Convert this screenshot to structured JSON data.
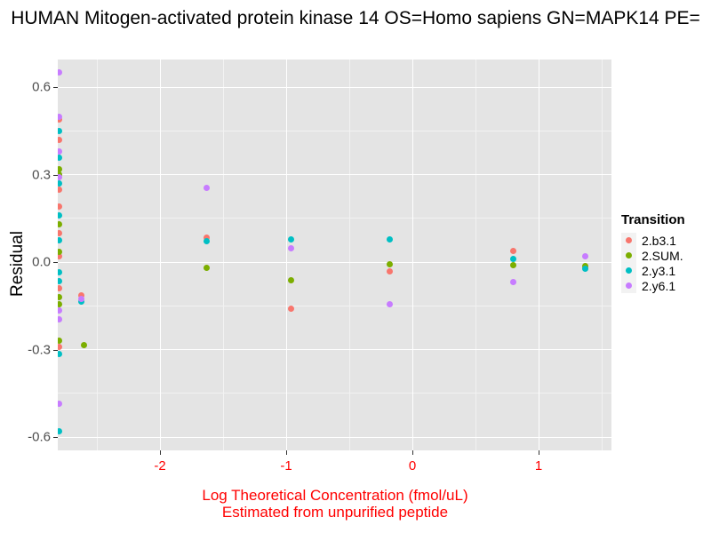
{
  "chart_data": {
    "type": "scatter",
    "title": "HUMAN Mitogen-activated protein kinase 14 OS=Homo sapiens GN=MAPK14 PE=",
    "ylabel": "Residual",
    "xlabel": [
      "Log Theoretical Concentration (fmol/uL)",
      "Estimated from unpurified peptide"
    ],
    "legend_title": "Transition",
    "legend_position": "right",
    "grid": true,
    "xlim": [
      -2.81,
      1.577
    ],
    "ylim": [
      -0.645,
      0.695
    ],
    "x_ticks": {
      "values": [
        -2,
        -1,
        0,
        1
      ],
      "labels": [
        "-2",
        "-1",
        "0",
        "1"
      ]
    },
    "y_ticks": {
      "values": [
        0.6,
        0.3,
        0.0,
        -0.3,
        -0.6
      ],
      "labels": [
        "0.6",
        "0.3",
        "0.0",
        "-0.3",
        "-0.6"
      ]
    },
    "x_minor": [
      -2.5,
      -1.5,
      -0.5,
      0.5,
      1.5
    ],
    "y_minor": [
      0.45,
      0.15,
      -0.15,
      -0.45
    ],
    "series": [
      {
        "name": "2.b3.1",
        "color": "#F8766D",
        "points": [
          [
            -2.8,
            0.49
          ],
          [
            -2.8,
            0.42
          ],
          [
            -2.8,
            0.25
          ],
          [
            -2.8,
            0.19
          ],
          [
            -2.8,
            0.1
          ],
          [
            -2.8,
            0.02
          ],
          [
            -2.8,
            -0.09
          ],
          [
            -2.8,
            -0.29
          ],
          [
            -2.62,
            -0.115
          ],
          [
            -1.63,
            0.084
          ],
          [
            -0.96,
            -0.158
          ],
          [
            -0.18,
            -0.032
          ],
          [
            0.8,
            0.038
          ],
          [
            1.37,
            -0.018
          ]
        ]
      },
      {
        "name": "2.SUM.",
        "color": "#7CAE00",
        "points": [
          [
            -2.8,
            0.32
          ],
          [
            -2.8,
            0.3
          ],
          [
            -2.8,
            0.13
          ],
          [
            -2.8,
            0.035
          ],
          [
            -2.8,
            -0.12
          ],
          [
            -2.8,
            -0.145
          ],
          [
            -2.8,
            -0.27
          ],
          [
            -2.6,
            -0.285
          ],
          [
            -1.63,
            -0.02
          ],
          [
            -0.96,
            -0.062
          ],
          [
            -0.18,
            -0.008
          ],
          [
            0.8,
            -0.011
          ],
          [
            1.37,
            -0.012
          ]
        ]
      },
      {
        "name": "2.y3.1",
        "color": "#00BFC4",
        "points": [
          [
            -2.8,
            0.45
          ],
          [
            -2.8,
            0.36
          ],
          [
            -2.8,
            0.27
          ],
          [
            -2.8,
            0.16
          ],
          [
            -2.8,
            0.075
          ],
          [
            -2.8,
            -0.035
          ],
          [
            -2.8,
            -0.065
          ],
          [
            -2.8,
            -0.315
          ],
          [
            -2.8,
            -0.58
          ],
          [
            -2.62,
            -0.135
          ],
          [
            -1.63,
            0.072
          ],
          [
            -0.96,
            0.078
          ],
          [
            -0.18,
            0.078
          ],
          [
            0.8,
            0.012
          ],
          [
            1.37,
            -0.022
          ]
        ]
      },
      {
        "name": "2.y6.1",
        "color": "#C77CFF",
        "points": [
          [
            -2.8,
            0.65
          ],
          [
            -2.8,
            0.5
          ],
          [
            -2.8,
            0.38
          ],
          [
            -2.8,
            0.29
          ],
          [
            -2.8,
            -0.165
          ],
          [
            -2.8,
            -0.195
          ],
          [
            -2.8,
            -0.485
          ],
          [
            -2.62,
            -0.125
          ],
          [
            -1.63,
            0.255
          ],
          [
            -0.96,
            0.048
          ],
          [
            -0.18,
            -0.144
          ],
          [
            0.8,
            -0.068
          ],
          [
            1.37,
            0.02
          ]
        ]
      }
    ]
  },
  "style": {
    "panel_bg": "#E4E4E4",
    "grid_major": "#FFFFFF",
    "grid_minor": "#F2F2F2",
    "tick_color": "#333333",
    "y_tick_label_color": "#4D4D4D",
    "x_tick_label_color": "#FF0000",
    "x_title_color": "#FF0000",
    "title_color": "#000000",
    "legend_key_bg": "#F2F2F2"
  }
}
